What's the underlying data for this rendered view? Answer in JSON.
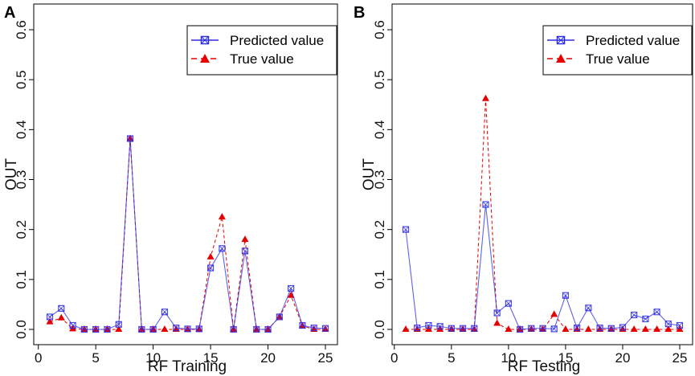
{
  "chart_data": [
    {
      "type": "line",
      "panel_label": "A",
      "xlabel": "RF Training",
      "ylabel": "OUT",
      "xlim": [
        0,
        25.6
      ],
      "ylim": [
        -0.02,
        0.62
      ],
      "xticks": [
        0,
        5,
        10,
        15,
        20,
        25
      ],
      "xtick_labels": [
        "0",
        "5",
        "10",
        "15",
        "20",
        "25"
      ],
      "yticks": [
        0.0,
        0.1,
        0.2,
        0.3,
        0.4,
        0.5,
        0.6
      ],
      "ytick_labels": [
        "0.0",
        "0.1",
        "0.2",
        "0.3",
        "0.4",
        "0.5",
        "0.6"
      ],
      "legend_position": "top-right",
      "x": [
        1,
        2,
        3,
        4,
        5,
        6,
        7,
        8,
        9,
        10,
        11,
        12,
        13,
        14,
        15,
        16,
        17,
        18,
        19,
        20,
        21,
        22,
        23,
        24,
        25
      ],
      "series": [
        {
          "name": "Predicted value",
          "color": "#2c2ce6",
          "marker": "square-x",
          "linestyle": "solid",
          "values": [
            0.025,
            0.042,
            0.008,
            0.0,
            0.0,
            0.0,
            0.01,
            0.382,
            0.0,
            0.0,
            0.035,
            0.003,
            0.001,
            0.001,
            0.123,
            0.162,
            0.0,
            0.157,
            0.0,
            0.0,
            0.025,
            0.082,
            0.008,
            0.003,
            0.002
          ]
        },
        {
          "name": "True value",
          "color": "#e60000",
          "marker": "triangle",
          "linestyle": "dashed",
          "values": [
            0.015,
            0.023,
            0.001,
            0.0,
            0.0,
            0.0,
            0.0,
            0.382,
            0.0,
            0.0,
            0.0,
            0.0,
            0.0,
            0.0,
            0.145,
            0.225,
            0.0,
            0.18,
            0.0,
            0.0,
            0.025,
            0.068,
            0.007,
            0.0,
            0.0
          ]
        }
      ]
    },
    {
      "type": "line",
      "panel_label": "B",
      "xlabel": "RF Testing",
      "ylabel": "OUT",
      "xlim": [
        0,
        25.6
      ],
      "ylim": [
        -0.02,
        0.62
      ],
      "xticks": [
        0,
        5,
        10,
        15,
        20,
        25
      ],
      "xtick_labels": [
        "0",
        "5",
        "10",
        "15",
        "20",
        "25"
      ],
      "yticks": [
        0.0,
        0.1,
        0.2,
        0.3,
        0.4,
        0.5,
        0.6
      ],
      "ytick_labels": [
        "0.0",
        "0.1",
        "0.2",
        "0.3",
        "0.4",
        "0.5",
        "0.6"
      ],
      "legend_position": "top-right",
      "x": [
        1,
        2,
        3,
        4,
        5,
        6,
        7,
        8,
        9,
        10,
        11,
        12,
        13,
        14,
        15,
        16,
        17,
        18,
        19,
        20,
        21,
        22,
        23,
        24,
        25
      ],
      "series": [
        {
          "name": "Predicted value",
          "color": "#2c2ce6",
          "marker": "square-x",
          "linestyle": "solid",
          "values": [
            0.2,
            0.003,
            0.008,
            0.006,
            0.002,
            0.002,
            0.002,
            0.25,
            0.033,
            0.052,
            0.0,
            0.002,
            0.002,
            0.001,
            0.068,
            0.003,
            0.043,
            0.003,
            0.002,
            0.004,
            0.029,
            0.021,
            0.035,
            0.011,
            0.008
          ]
        },
        {
          "name": "True value",
          "color": "#e60000",
          "marker": "triangle",
          "linestyle": "dashed",
          "values": [
            0.0,
            0.0,
            0.0,
            0.0,
            0.0,
            0.0,
            0.0,
            0.462,
            0.012,
            0.0,
            0.0,
            0.0,
            0.0,
            0.03,
            0.0,
            0.0,
            0.0,
            0.0,
            0.0,
            0.0,
            0.0,
            0.0,
            0.0,
            0.0,
            0.0
          ]
        }
      ]
    }
  ]
}
